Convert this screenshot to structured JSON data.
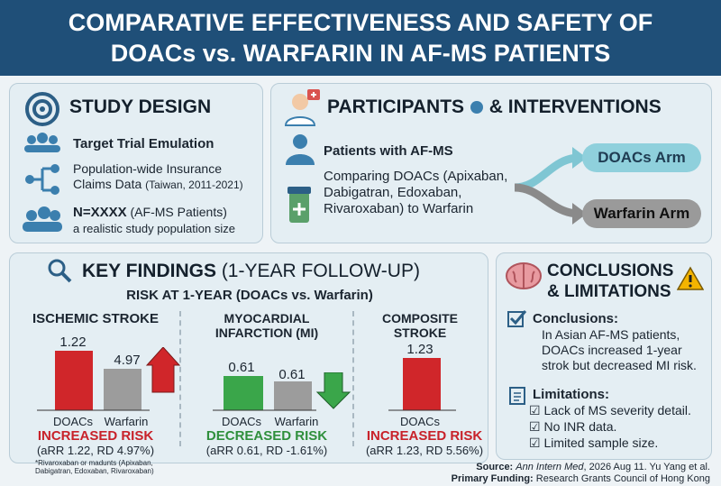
{
  "header": {
    "line1": "COMPARATIVE EFFECTIVENESS AND SAFETY OF",
    "line2": "DOACs vs. WARFARIN IN AF-MS PATIENTS"
  },
  "study_design": {
    "title": "STUDY DESIGN",
    "items": [
      {
        "main": "Target Trial Emulation"
      },
      {
        "main": "Population-wide Insurance Claims Data",
        "note": "(Taiwan, 2011-2021)"
      },
      {
        "main": "N=XXXX",
        "note": "(AF-MS Patients)",
        "sub": "a realistic study population size"
      }
    ]
  },
  "participants": {
    "title_a": "PARTICIPANTS",
    "title_b": "& INTERVENTIONS",
    "population": "Patients with AF-MS",
    "comparison": "Comparing DOACs (Apixaban, Dabigatran, Edoxaban, Rivaroxaban) to Warfarin",
    "arms": [
      "DOACs Arm",
      "Warfarin Arm"
    ]
  },
  "findings": {
    "title": "KEY FINDINGS",
    "title_note": "(1-YEAR FOLLOW-UP)",
    "subtitle": "RISK AT 1-YEAR (DOACs vs. Warfarin)",
    "outcomes": [
      {
        "name": "ISCHEMIC STROKE",
        "labels": [
          "1.22",
          "4.97"
        ],
        "groups": [
          "DOACs",
          "Warfarin"
        ],
        "verdict": "INCREASED RISK",
        "stats": "(aRR 1.22, RD 4.97%)",
        "footnote": "*Rivaroxaban or madunts (Apixaban, Dabigatran, Edoxaban, Rivaroxaban)"
      },
      {
        "name": "MYOCARDIAL INFARCTION (MI)",
        "labels": [
          "0.61",
          "0.61"
        ],
        "groups": [
          "DOACs",
          "Warfarin"
        ],
        "verdict": "DECREASED RISK",
        "stats": "(aRR 0.61, RD -1.61%)"
      },
      {
        "name": "COMPOSITE STROKE",
        "labels": [
          "1.23"
        ],
        "groups": [
          "DOACs"
        ],
        "verdict": "INCREASED RISK",
        "stats": "(aRR 1.23, RD 5.56%)"
      }
    ]
  },
  "conclusions": {
    "title": "CONCLUSIONS & LIMITATIONS",
    "conc_head": "Conclusions:",
    "conc_text": "In Asian AF-MS patients, DOACs increased 1-year strok but decreased MI risk.",
    "lim_head": "Limitations:",
    "limitations": [
      "Lack of MS severity detail.",
      "No INR data.",
      "Limited sample size."
    ]
  },
  "footer": {
    "source_label": "Source:",
    "journal": "Ann Intern Med",
    "source_rest": ", 2026 Aug 11. Yu Yang et al.",
    "funding_label": "Primary Funding:",
    "funding": "Research Grants Council of Hong Kong"
  }
}
